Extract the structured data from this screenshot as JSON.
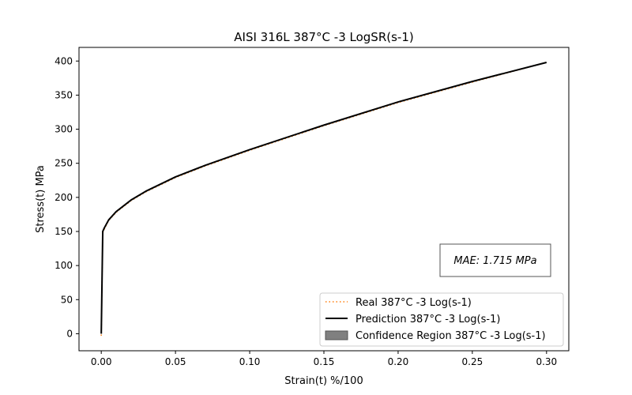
{
  "chart_data": {
    "type": "line",
    "title": "AISI 316L 387°C -3 LogSR(s-1)",
    "xlabel": "Strain(t) %/100",
    "ylabel": "Stress(t) MPa",
    "xlim": [
      -0.015,
      0.315
    ],
    "ylim": [
      -25,
      420
    ],
    "x_ticks": [
      "0.00",
      "0.05",
      "0.10",
      "0.15",
      "0.20",
      "0.25",
      "0.30"
    ],
    "x_tick_values": [
      0.0,
      0.05,
      0.1,
      0.15,
      0.2,
      0.25,
      0.3
    ],
    "y_ticks": [
      "0",
      "50",
      "100",
      "150",
      "200",
      "250",
      "300",
      "350",
      "400"
    ],
    "y_tick_values": [
      0,
      50,
      100,
      150,
      200,
      250,
      300,
      350,
      400
    ],
    "grid": false,
    "legend_position": "bottom-right",
    "series": [
      {
        "name": "Real 387°C -3 Log(s-1)",
        "style": "dotted",
        "color": "#ff7f0e",
        "x": [
          0.0,
          0.0005,
          0.001,
          0.002,
          0.005,
          0.01,
          0.02,
          0.03,
          0.05,
          0.07,
          0.1,
          0.15,
          0.2,
          0.25,
          0.3
        ],
        "y": [
          -3,
          75,
          148,
          153,
          166,
          178,
          195,
          208,
          229,
          246,
          269,
          305,
          339,
          369,
          398
        ]
      },
      {
        "name": "Prediction 387°C -3 Log(s-1)",
        "style": "solid",
        "color": "#000000",
        "x": [
          0.0,
          0.0005,
          0.001,
          0.002,
          0.005,
          0.01,
          0.02,
          0.03,
          0.05,
          0.07,
          0.1,
          0.15,
          0.2,
          0.25,
          0.3
        ],
        "y": [
          0,
          75,
          150,
          155,
          167,
          179,
          196,
          209,
          230,
          247,
          270,
          306,
          340,
          370,
          398
        ]
      },
      {
        "name": "Confidence Region 387°C -3 Log(s-1)",
        "style": "fill",
        "color": "#808080"
      }
    ],
    "annotations": [
      {
        "text": "MAE: 1.715 MPa",
        "position": "right, lower-middle"
      }
    ]
  }
}
